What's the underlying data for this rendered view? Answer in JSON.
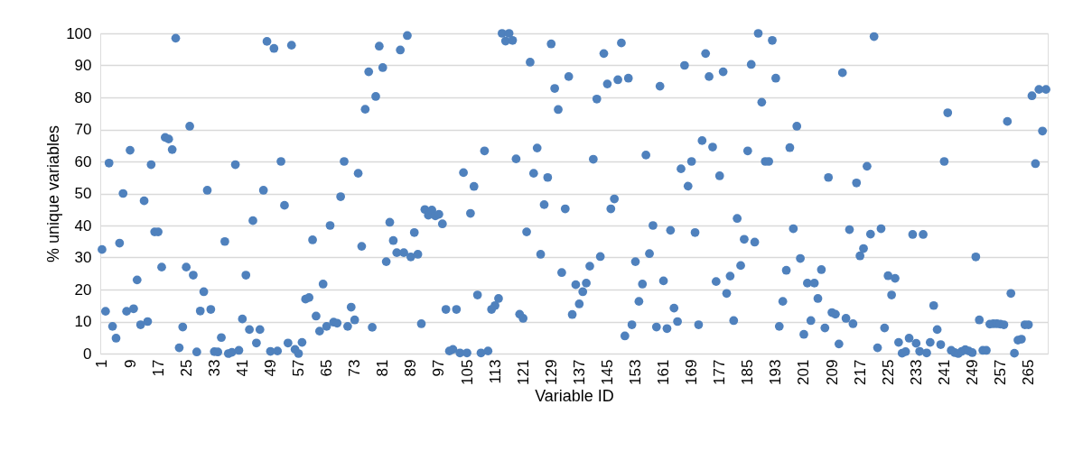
{
  "chart_data": {
    "type": "scatter",
    "xlabel": "Variable ID",
    "ylabel": "% unique variables",
    "xlim": [
      0.5,
      270.5
    ],
    "xticks": [
      1,
      9,
      17,
      25,
      33,
      41,
      49,
      57,
      65,
      73,
      81,
      89,
      97,
      105,
      113,
      121,
      129,
      137,
      145,
      153,
      161,
      169,
      177,
      185,
      193,
      201,
      209,
      217,
      225,
      233,
      241,
      249,
      257,
      265
    ],
    "ylim": [
      0,
      100
    ],
    "yticks": [
      0,
      10,
      20,
      30,
      40,
      50,
      60,
      70,
      80,
      90,
      100
    ],
    "grid": "y",
    "marker": "circle",
    "legend": false,
    "x": [
      1,
      2,
      3,
      4,
      5,
      6,
      7,
      8,
      9,
      10,
      11,
      12,
      13,
      14,
      15,
      16,
      17,
      18,
      19,
      20,
      21,
      22,
      23,
      24,
      25,
      26,
      27,
      28,
      29,
      30,
      31,
      32,
      33,
      34,
      35,
      36,
      37,
      38,
      39,
      40,
      41,
      42,
      43,
      44,
      45,
      46,
      47,
      48,
      49,
      50,
      51,
      52,
      53,
      54,
      55,
      56,
      57,
      58,
      59,
      60,
      61,
      62,
      63,
      64,
      65,
      66,
      67,
      68,
      69,
      70,
      71,
      72,
      73,
      74,
      75,
      76,
      77,
      78,
      79,
      80,
      81,
      82,
      83,
      84,
      85,
      86,
      87,
      88,
      89,
      90,
      91,
      92,
      93,
      94,
      95,
      96,
      97,
      98,
      99,
      100,
      101,
      102,
      103,
      104,
      105,
      106,
      107,
      108,
      109,
      110,
      111,
      112,
      113,
      114,
      115,
      116,
      117,
      118,
      119,
      120,
      121,
      122,
      123,
      124,
      125,
      126,
      127,
      128,
      129,
      130,
      131,
      132,
      133,
      134,
      135,
      136,
      137,
      138,
      139,
      140,
      141,
      142,
      143,
      144,
      145,
      146,
      147,
      148,
      149,
      150,
      151,
      152,
      153,
      154,
      155,
      156,
      157,
      158,
      159,
      160,
      161,
      162,
      163,
      164,
      165,
      166,
      167,
      168,
      169,
      170,
      171,
      172,
      173,
      174,
      175,
      176,
      177,
      178,
      179,
      180,
      181,
      182,
      183,
      184,
      185,
      186,
      187,
      188,
      189,
      190,
      191,
      192,
      193,
      194,
      195,
      196,
      197,
      198,
      199,
      200,
      201,
      202,
      203,
      204,
      205,
      206,
      207,
      208,
      209,
      210,
      211,
      212,
      213,
      214,
      215,
      216,
      217,
      218,
      219,
      220,
      221,
      222,
      223,
      224,
      225,
      226,
      227,
      228,
      229,
      230,
      231,
      232,
      233,
      234,
      235,
      236,
      237,
      238,
      239,
      240,
      241,
      242,
      243,
      244,
      245,
      246,
      247,
      248,
      249,
      250,
      251,
      252,
      253,
      254,
      255,
      256,
      257,
      258,
      259,
      260,
      261,
      262,
      263,
      264,
      265,
      266,
      267,
      268,
      269,
      270
    ],
    "series": [
      {
        "color": "#4f81bd",
        "values": [
          32.5,
          13.2,
          59.5,
          8.5,
          4.8,
          34.5,
          50,
          13.2,
          63.5,
          14,
          23,
          9,
          47.7,
          10,
          59,
          38,
          38,
          27,
          67.5,
          67,
          63.7,
          98.5,
          1.8,
          8.3,
          27,
          71,
          24.5,
          0.5,
          13.3,
          19.3,
          51,
          13.8,
          0.6,
          0.5,
          5,
          35,
          0,
          0.4,
          59,
          1,
          10.8,
          24.5,
          7.5,
          41.5,
          3.3,
          7.5,
          51,
          97.5,
          0.7,
          95.3,
          0.8,
          60,
          46.3,
          3.3,
          96.3,
          1.3,
          0,
          3.5,
          17,
          17.5,
          35.5,
          11.7,
          7,
          21.7,
          8.5,
          40,
          9.8,
          9.5,
          49,
          60,
          8.5,
          14.5,
          10.5,
          56.3,
          33.5,
          76.3,
          88,
          8.2,
          80.3,
          96,
          89.3,
          28.7,
          41,
          35.3,
          31.5,
          94.8,
          31.5,
          99.3,
          30.2,
          37.8,
          31,
          9.3,
          45,
          43.2,
          44.8,
          43,
          43.5,
          40.5,
          13.8,
          0.8,
          1.3,
          13.8,
          0.2,
          56.5,
          0.2,
          43.8,
          52.2,
          18.3,
          0.2,
          63.3,
          0.8,
          13.8,
          15,
          17.2,
          100,
          97.6,
          100,
          97.8,
          60.8,
          12.3,
          11,
          38,
          91,
          56.3,
          64.2,
          31,
          46.5,
          55,
          96.7,
          82.8,
          76.2,
          25.3,
          45.2,
          86.5,
          12.2,
          21.5,
          15.5,
          19.3,
          22,
          27.3,
          60.7,
          79.5,
          30.3,
          93.7,
          84.2,
          45.2,
          48.3,
          85.5,
          97,
          5.5,
          86,
          9,
          28.7,
          16.3,
          21.7,
          62,
          31.2,
          40,
          8.3,
          83.5,
          22.7,
          7.8,
          38.5,
          14.2,
          10,
          57.7,
          90,
          52.3,
          60,
          37.8,
          9,
          66.5,
          93.7,
          86.5,
          64.5,
          22.5,
          55.5,
          88,
          18.8,
          24.2,
          10.3,
          42.2,
          27.5,
          35.7,
          63.3,
          90.3,
          34.8,
          100,
          78.5,
          60,
          60,
          97.8,
          86,
          8.5,
          16.3,
          26,
          64.3,
          39,
          71,
          29.7,
          6,
          22,
          10.3,
          22,
          17.2,
          26.2,
          8,
          55,
          12.8,
          12.3,
          3,
          87.7,
          11,
          38.7,
          9.3,
          53.3,
          30.5,
          32.8,
          58.5,
          37.3,
          99,
          1.8,
          39,
          8,
          24.3,
          18.3,
          23.5,
          3.5,
          0.1,
          0.6,
          4.8,
          37.2,
          3.2,
          0.7,
          37.2,
          0.2,
          3.5,
          15,
          7.5,
          2.8,
          60,
          75.2,
          1,
          0.3,
          0,
          0.7,
          1.2,
          0.8,
          0.3,
          30.2,
          10.5,
          1,
          1,
          9.2,
          9.3,
          9.3,
          9.2,
          9,
          72.5,
          18.8,
          0.1,
          4.2,
          4.5,
          9,
          9,
          80.5,
          59.3,
          82.5,
          69.5,
          82.5
        ]
      }
    ]
  }
}
